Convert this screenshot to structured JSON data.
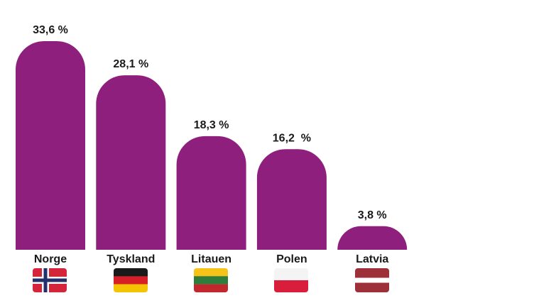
{
  "chart_data": {
    "type": "bar",
    "categories": [
      "Norge",
      "Tyskland",
      "Litauen",
      "Polen",
      "Latvia"
    ],
    "values": [
      33.6,
      28.1,
      18.3,
      16.2,
      3.8
    ],
    "value_labels": [
      "33,6 %",
      "28,1 %",
      "18,3 %",
      "16,2  %",
      "3,8 %"
    ],
    "color": "#8e1f7c"
  }
}
